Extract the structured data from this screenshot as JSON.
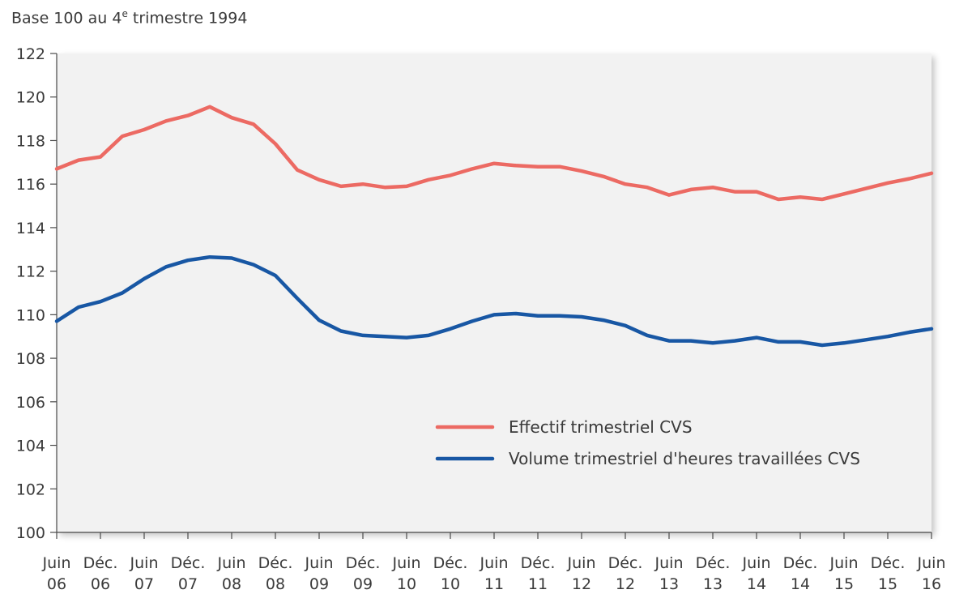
{
  "subtitle": {
    "prefix": "Base 100 au 4",
    "sup": "e",
    "suffix": " trimestre 1994"
  },
  "chart_data": {
    "type": "line",
    "title": "",
    "subtitle": "Base 100 au 4e trimestre 1994",
    "xlabel": "",
    "ylabel": "",
    "ylim": [
      100,
      122
    ],
    "yticks": [
      100,
      102,
      104,
      106,
      108,
      110,
      112,
      114,
      116,
      118,
      120,
      122
    ],
    "grid": false,
    "legend_position": "lower-right",
    "x": [
      "2006-Q2",
      "2006-Q3",
      "2006-Q4",
      "2007-Q1",
      "2007-Q2",
      "2007-Q3",
      "2007-Q4",
      "2008-Q1",
      "2008-Q2",
      "2008-Q3",
      "2008-Q4",
      "2009-Q1",
      "2009-Q2",
      "2009-Q3",
      "2009-Q4",
      "2010-Q1",
      "2010-Q2",
      "2010-Q3",
      "2010-Q4",
      "2011-Q1",
      "2011-Q2",
      "2011-Q3",
      "2011-Q4",
      "2012-Q1",
      "2012-Q2",
      "2012-Q3",
      "2012-Q4",
      "2013-Q1",
      "2013-Q2",
      "2013-Q3",
      "2013-Q4",
      "2014-Q1",
      "2014-Q2",
      "2014-Q3",
      "2014-Q4",
      "2015-Q1",
      "2015-Q2",
      "2015-Q3",
      "2015-Q4",
      "2016-Q1",
      "2016-Q2"
    ],
    "x_tick_labels": [
      [
        "Juin",
        "06"
      ],
      [
        "Déc.",
        "06"
      ],
      [
        "Juin",
        "07"
      ],
      [
        "Déc.",
        "07"
      ],
      [
        "Juin",
        "08"
      ],
      [
        "Déc.",
        "08"
      ],
      [
        "Juin",
        "09"
      ],
      [
        "Déc.",
        "09"
      ],
      [
        "Juin",
        "10"
      ],
      [
        "Déc.",
        "10"
      ],
      [
        "Juin",
        "11"
      ],
      [
        "Déc.",
        "11"
      ],
      [
        "Juin",
        "12"
      ],
      [
        "Déc.",
        "12"
      ],
      [
        "Juin",
        "13"
      ],
      [
        "Déc.",
        "13"
      ],
      [
        "Juin",
        "14"
      ],
      [
        "Déc.",
        "14"
      ],
      [
        "Juin",
        "15"
      ],
      [
        "Déc.",
        "15"
      ],
      [
        "Juin",
        "16"
      ]
    ],
    "series": [
      {
        "name": "Effectif trimestriel CVS",
        "color": "#ec6a63",
        "values": [
          116.7,
          117.1,
          117.25,
          118.2,
          118.5,
          118.9,
          119.15,
          119.55,
          119.05,
          118.75,
          117.85,
          116.65,
          116.2,
          115.9,
          116.0,
          115.85,
          115.9,
          116.2,
          116.4,
          116.7,
          116.95,
          116.85,
          116.8,
          116.8,
          116.6,
          116.35,
          116.0,
          115.85,
          115.5,
          115.75,
          115.85,
          115.65,
          115.65,
          115.3,
          115.4,
          115.3,
          115.55,
          115.8,
          116.05,
          116.25,
          116.5
        ]
      },
      {
        "name": "Volume trimestriel d'heures travaillées CVS",
        "color": "#1857a4",
        "values": [
          109.7,
          110.35,
          110.6,
          111.0,
          111.65,
          112.2,
          112.5,
          112.65,
          112.6,
          112.3,
          111.8,
          110.75,
          109.75,
          109.25,
          109.05,
          109.0,
          108.95,
          109.05,
          109.35,
          109.7,
          110.0,
          110.05,
          109.95,
          109.95,
          109.9,
          109.75,
          109.5,
          109.05,
          108.8,
          108.8,
          108.7,
          108.8,
          108.95,
          108.75,
          108.75,
          108.6,
          108.7,
          108.85,
          109.0,
          109.2,
          109.35
        ]
      }
    ]
  }
}
